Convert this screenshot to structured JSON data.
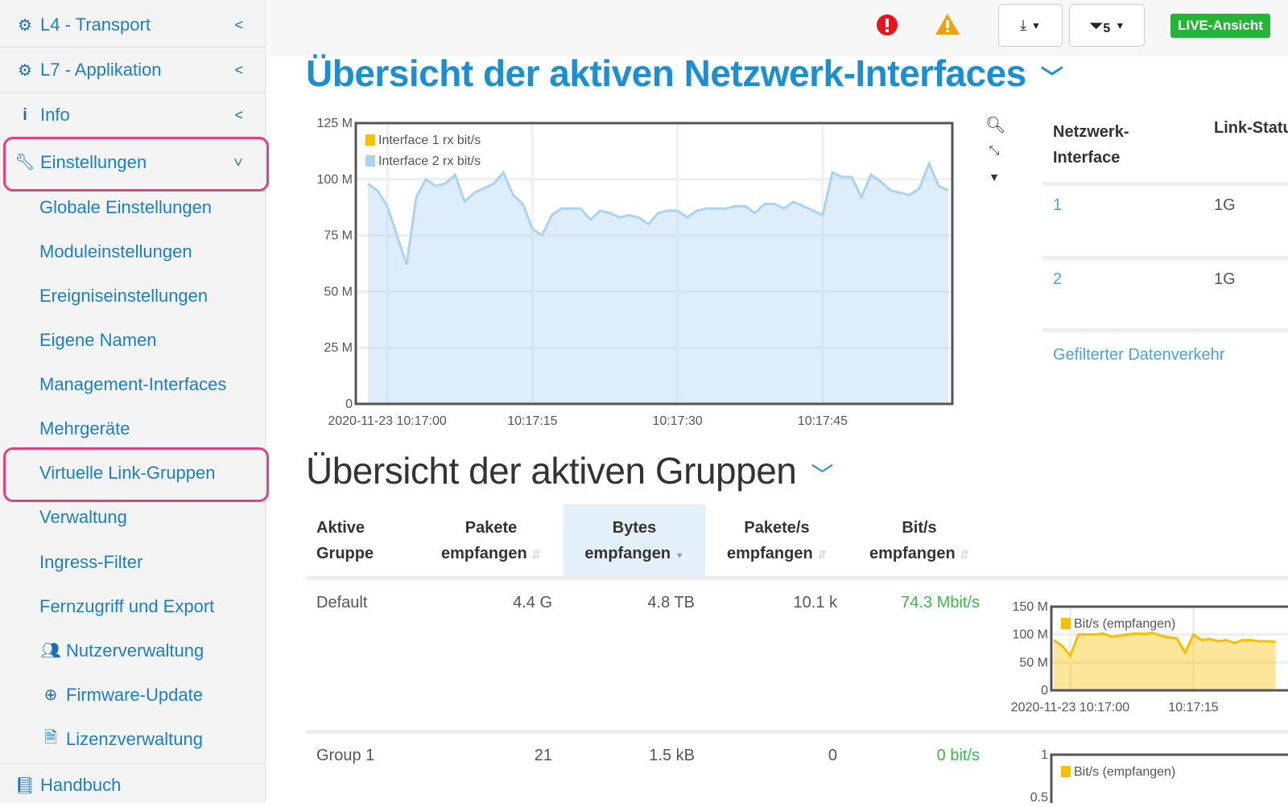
{
  "sidebar": {
    "items": [
      {
        "label": "L4 - Transport",
        "icon": "gear-icon"
      },
      {
        "label": "L7 - Applikation",
        "icon": "gear-icon"
      },
      {
        "label": "Info",
        "icon": "info-icon"
      },
      {
        "label": "Einstellungen",
        "icon": "wrench-icon"
      },
      {
        "label": "Globale Einstellungen"
      },
      {
        "label": "Moduleinstellungen"
      },
      {
        "label": "Ereigniseinstellungen"
      },
      {
        "label": "Eigene Namen"
      },
      {
        "label": "Management-Interfaces"
      },
      {
        "label": "Mehrgeräte"
      },
      {
        "label": "Virtuelle Link-Gruppen"
      },
      {
        "label": "Verwaltung"
      },
      {
        "label": "Ingress-Filter"
      },
      {
        "label": "Fernzugriff und Export"
      },
      {
        "label": "Nutzerverwaltung",
        "icon": "users-icon"
      },
      {
        "label": "Firmware-Update",
        "icon": "upload-circle-icon"
      },
      {
        "label": "Lizenzverwaltung",
        "icon": "document-icon"
      },
      {
        "label": "Handbuch",
        "icon": "book-icon"
      }
    ]
  },
  "topbar": {
    "filter_count": "5",
    "live_label": "LIVE-Ansicht",
    "colors": {
      "error": "#e8141c",
      "warning": "#f5a00a",
      "live": "#22b537"
    }
  },
  "interfaces": {
    "title": "Übersicht der aktiven Netzwerk-Interfaces",
    "table": {
      "headers": [
        "Netzwerk-Interface",
        "Link-Status"
      ],
      "rows": [
        [
          "1",
          "1G"
        ],
        [
          "2",
          "1G"
        ]
      ],
      "link": "Gefilterter Datenverkehr"
    }
  },
  "groups": {
    "title": "Übersicht der aktiven Gruppen",
    "headers": [
      [
        "Aktive",
        "Gruppe"
      ],
      [
        "Pakete",
        "empfangen"
      ],
      [
        "Bytes",
        "empfangen"
      ],
      [
        "Pakete/s",
        "empfangen"
      ],
      [
        "Bit/s",
        "empfangen"
      ]
    ],
    "sorted_column": "Bytes empfangen",
    "rows": [
      {
        "name": "Default",
        "pakete": "4.4 G",
        "bytes": "4.8 TB",
        "pps": "10.1 k",
        "bps": "74.3 Mbit/s"
      },
      {
        "name": "Group 1",
        "pakete": "21",
        "bytes": "1.5 kB",
        "pps": "0",
        "bps": "0 bit/s"
      }
    ]
  },
  "chart_data": [
    {
      "type": "area",
      "ylim": [
        0,
        125
      ],
      "yunit": "M",
      "yticks": [
        "0",
        "25 M",
        "50 M",
        "75 M",
        "100 M",
        "125 M"
      ],
      "xticks": [
        "2020-11-23 10:17:00",
        "10:17:15",
        "10:17:30",
        "10:17:45"
      ],
      "legend": "top-left",
      "grid": true,
      "x": [
        "10:16:58",
        "10:16:59",
        "10:17:00",
        "10:17:01",
        "10:17:02",
        "10:17:03",
        "10:17:04",
        "10:17:05",
        "10:17:06",
        "10:17:07",
        "10:17:08",
        "10:17:09",
        "10:17:10",
        "10:17:11",
        "10:17:12",
        "10:17:13",
        "10:17:14",
        "10:17:15",
        "10:17:16",
        "10:17:17",
        "10:17:18",
        "10:17:19",
        "10:17:20",
        "10:17:21",
        "10:17:22",
        "10:17:23",
        "10:17:24",
        "10:17:25",
        "10:17:26",
        "10:17:27",
        "10:17:28",
        "10:17:29",
        "10:17:30",
        "10:17:31",
        "10:17:32",
        "10:17:33",
        "10:17:34",
        "10:17:35",
        "10:17:36",
        "10:17:37",
        "10:17:38",
        "10:17:39",
        "10:17:40",
        "10:17:41",
        "10:17:42",
        "10:17:43",
        "10:17:44",
        "10:17:45",
        "10:17:46",
        "10:17:47",
        "10:17:48",
        "10:17:49",
        "10:17:50",
        "10:17:51",
        "10:17:52",
        "10:17:53",
        "10:17:54",
        "10:17:55",
        "10:17:56",
        "10:17:57",
        "10:17:58"
      ],
      "series": [
        {
          "name": "Interface 1 rx bit/s",
          "color": "#f5c000",
          "values": [
            0,
            0,
            0,
            0,
            0,
            0,
            0,
            0,
            0,
            0,
            0,
            0,
            0,
            0,
            0,
            0,
            0,
            0,
            0,
            0,
            0,
            0,
            0,
            0,
            0,
            0,
            0,
            0,
            0,
            0,
            0,
            0,
            0,
            0,
            0,
            0,
            0,
            0,
            0,
            0,
            0,
            0,
            0,
            0,
            0,
            0,
            0,
            0,
            0,
            0,
            0,
            0,
            0,
            0,
            0,
            0,
            0,
            0,
            0,
            0,
            0
          ]
        },
        {
          "name": "Interface 2 rx bit/s",
          "color": "#a9d3f0",
          "values": [
            98,
            95,
            88,
            75,
            62,
            92,
            100,
            97,
            98,
            102,
            90,
            94,
            96,
            98,
            103,
            93,
            89,
            78,
            75,
            84,
            87,
            87,
            87,
            82,
            86,
            85,
            83,
            84,
            83,
            80,
            85,
            86,
            86,
            83,
            86,
            87,
            87,
            87,
            88,
            88,
            85,
            89,
            89,
            87,
            90,
            88,
            86,
            84,
            103,
            101,
            101,
            92,
            102,
            99,
            95,
            94,
            93,
            96,
            107,
            97,
            95
          ]
        }
      ]
    },
    {
      "type": "area",
      "ylim": [
        0,
        150
      ],
      "yticks": [
        "0",
        "50 M",
        "100 M",
        "150 M"
      ],
      "xticks": [
        "2020-11-23 10:17:00",
        "10:17:15"
      ],
      "legend": "top-left",
      "x": [
        "10:16:58",
        "10:16:59",
        "10:17:00",
        "10:17:01",
        "10:17:02",
        "10:17:03",
        "10:17:04",
        "10:17:05",
        "10:17:06",
        "10:17:07",
        "10:17:08",
        "10:17:09",
        "10:17:10",
        "10:17:11",
        "10:17:12",
        "10:17:13",
        "10:17:14",
        "10:17:15",
        "10:17:16",
        "10:17:17",
        "10:17:18",
        "10:17:19",
        "10:17:20",
        "10:17:21",
        "10:17:22",
        "10:17:23",
        "10:17:24",
        "10:17:25"
      ],
      "series": [
        {
          "name": "Bit/s (empfangen)",
          "color": "#f5c000",
          "values": [
            90,
            80,
            62,
            100,
            100,
            100,
            102,
            96,
            98,
            100,
            102,
            101,
            103,
            98,
            95,
            93,
            68,
            100,
            90,
            92,
            88,
            90,
            85,
            90,
            90,
            88,
            88,
            87
          ]
        }
      ]
    },
    {
      "type": "area",
      "yticks": [
        "0.5",
        "1"
      ],
      "legend": "top-left",
      "series": [
        {
          "name": "Bit/s (empfangen)",
          "color": "#f5c000"
        }
      ]
    }
  ]
}
